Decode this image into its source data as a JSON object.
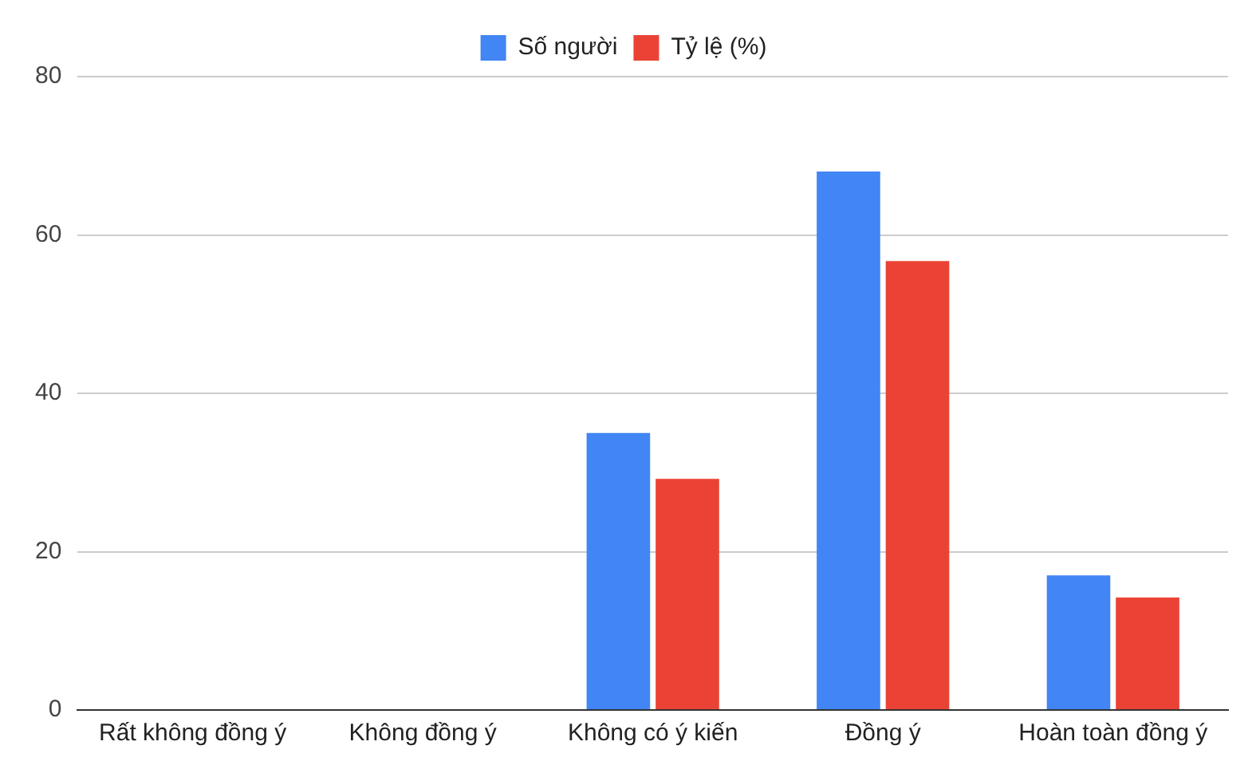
{
  "chart_data": {
    "type": "bar",
    "categories": [
      "Rất không đồng ý",
      "Không đồng ý",
      "Không có ý kiến",
      "Đồng ý",
      "Hoàn toàn đồng ý"
    ],
    "series": [
      {
        "name": "Số người",
        "color": "#4285f4",
        "values": [
          0,
          0,
          35,
          68,
          17
        ]
      },
      {
        "name": "Tỷ lệ (%)",
        "color": "#ea4335",
        "values": [
          0,
          0,
          29.2,
          56.7,
          14.2
        ]
      }
    ],
    "ylim": [
      0,
      80
    ],
    "yticks": [
      0,
      20,
      40,
      60,
      80
    ],
    "grid": "y",
    "legend": "top"
  }
}
